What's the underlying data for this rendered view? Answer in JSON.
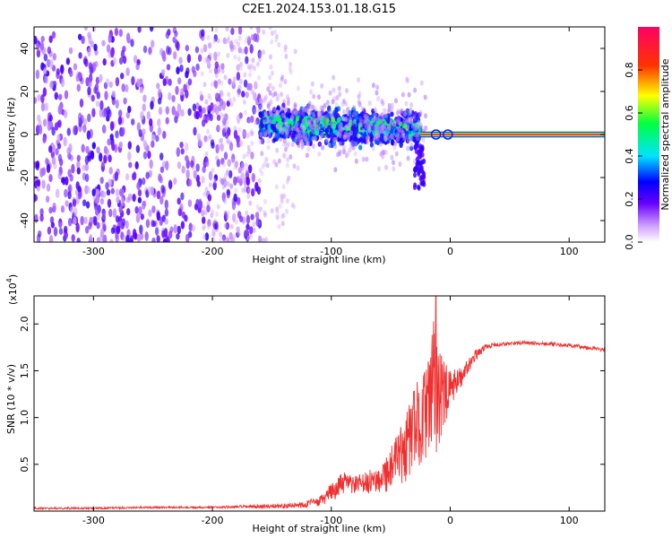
{
  "title": "C2E1.2024.153.01.18.G15",
  "chart_data": [
    {
      "type": "heatmap",
      "xlabel": "Height of straight line (km)",
      "ylabel": "Frequency (Hz)",
      "xlim": [
        -350,
        130
      ],
      "ylim": [
        -50,
        50
      ],
      "x_ticks": [
        -300,
        -200,
        -100,
        0,
        100
      ],
      "x_tick_labels": [
        "-300",
        "-200",
        "-100",
        "0",
        "100"
      ],
      "y_ticks": [
        -40,
        -20,
        0,
        20,
        40
      ],
      "y_tick_labels": [
        "-40",
        "-20",
        "0",
        "20",
        "40"
      ],
      "colorbar": {
        "label": "Normalized spectral amplitude",
        "range": [
          0,
          1
        ],
        "ticks": [
          0.0,
          0.2,
          0.4,
          0.6,
          0.8
        ],
        "tick_labels": [
          "0.0",
          "0.2",
          "0.4",
          "0.6",
          "0.8"
        ],
        "colormap": "rainbow (white-purple-blue-cyan-green-yellow-red-magenta)"
      },
      "regions": [
        {
          "x_range": [
            -350,
            -160
          ],
          "freq_spread": 50,
          "amplitude": "low (scattered purple noise)"
        },
        {
          "x_range": [
            -160,
            -25
          ],
          "freq_center": 5,
          "freq_spread": 12,
          "amplitude": "medium (blue/cyan/green band)"
        },
        {
          "x_range": [
            -25,
            130
          ],
          "freq_center": 0,
          "amplitude": "high (narrow red line at 0 Hz)"
        }
      ]
    },
    {
      "type": "line",
      "xlabel": "Height of straight line (km)",
      "ylabel": "SNR (10 * v/v)",
      "y_multiplier_label": "(x10",
      "y_multiplier_exp": "4",
      "xlim": [
        -350,
        130
      ],
      "ylim": [
        0,
        2.3
      ],
      "x_ticks": [
        -300,
        -200,
        -100,
        0,
        100
      ],
      "x_tick_labels": [
        "-300",
        "-200",
        "-100",
        "0",
        "100"
      ],
      "y_ticks": [
        0.5,
        1.0,
        1.5,
        2.0
      ],
      "y_tick_labels": [
        "0.5",
        "1.0",
        "1.5",
        "2.0"
      ],
      "series": [
        {
          "color": "#f03030",
          "x": [
            -350,
            -300,
            -250,
            -200,
            -160,
            -130,
            -110,
            -100,
            -90,
            -80,
            -70,
            -60,
            -50,
            -40,
            -30,
            -20,
            -12,
            -5,
            0,
            10,
            20,
            30,
            40,
            60,
            80,
            100,
            120,
            130
          ],
          "y": [
            0.03,
            0.03,
            0.04,
            0.04,
            0.05,
            0.06,
            0.1,
            0.2,
            0.3,
            0.28,
            0.3,
            0.35,
            0.45,
            0.6,
            0.9,
            1.05,
            1.4,
            1.2,
            1.3,
            1.45,
            1.65,
            1.76,
            1.78,
            1.8,
            1.79,
            1.77,
            1.74,
            1.72
          ],
          "noise_amplitude": [
            0.01,
            0.01,
            0.01,
            0.01,
            0.02,
            0.03,
            0.05,
            0.1,
            0.12,
            0.1,
            0.12,
            0.15,
            0.25,
            0.35,
            0.45,
            0.5,
            0.8,
            0.4,
            0.2,
            0.1,
            0.06,
            0.03,
            0.02,
            0.02,
            0.02,
            0.02,
            0.02,
            0.02
          ],
          "peak": [
            -12,
            2.3
          ]
        }
      ]
    }
  ]
}
